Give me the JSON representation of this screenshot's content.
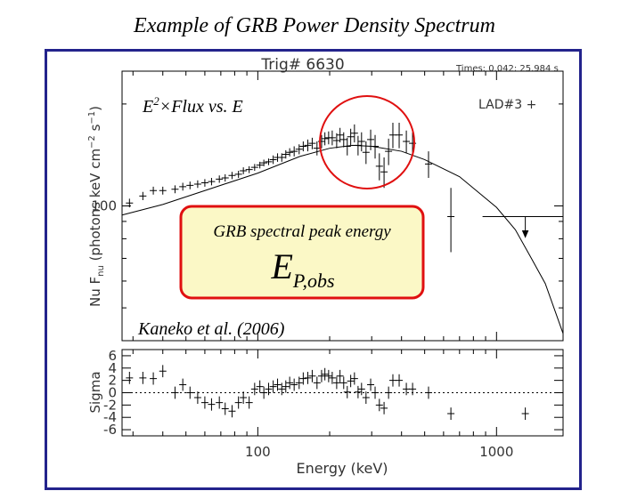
{
  "slide": {
    "title": "Example of GRB Power Density Spectrum",
    "formula": {
      "base": "E",
      "exponent": "2",
      "rest": "×Flux vs. E"
    },
    "peak_box": {
      "caption": "GRB spectral peak energy",
      "symbol": "E",
      "subscript": "P,obs"
    },
    "reference": "Kaneko et al. (2006)"
  },
  "chart_data": [
    {
      "type": "scatter",
      "title": "Trig# 6630",
      "subtitle": "Times: 0.042: 25.984 s",
      "detector": "LAD#3 +",
      "ylabel": {
        "main": "Nu F",
        "sub": "nu",
        "unit": " (photons keV cm",
        "exp1": "−2",
        "mid": " s",
        "exp2": "−1",
        "end": ")"
      },
      "log_x": true,
      "log_y": true,
      "color": "#000000",
      "xlim": [
        27,
        1900
      ],
      "ylim": [
        40,
        250
      ],
      "xticks": [
        100,
        1000
      ],
      "xminorticks": [
        30,
        40,
        50,
        60,
        70,
        80,
        90,
        200,
        300,
        400,
        500,
        600,
        700,
        800,
        900
      ],
      "yticks": [
        100
      ],
      "yminorticks": [
        50,
        60,
        70,
        80,
        90,
        200
      ],
      "x": [
        29,
        33,
        36.5,
        40,
        45,
        48.5,
        52,
        56,
        60,
        64,
        69,
        73,
        78,
        83,
        87,
        92,
        97,
        102,
        106,
        111,
        116,
        121,
        126,
        131,
        136,
        142,
        149,
        155,
        162,
        169,
        177,
        185,
        191,
        198,
        205,
        214,
        221,
        229,
        237,
        245,
        254,
        263,
        272,
        284,
        297,
        310,
        323,
        338,
        353,
        368,
        391,
        419,
        445,
        519,
        644
      ],
      "values": [
        102,
        107,
        111,
        111,
        112,
        114,
        115,
        116,
        117,
        118,
        120,
        121,
        123,
        124,
        127,
        128,
        130,
        132,
        134,
        135,
        137,
        139,
        139,
        142,
        144,
        145,
        147,
        150,
        151,
        153,
        148,
        155,
        158,
        159,
        159,
        156,
        162,
        157,
        150,
        160,
        164,
        151,
        155,
        144,
        157,
        150,
        131,
        126,
        145,
        162,
        162,
        155,
        153,
        133,
        93
      ],
      "errors": [
        3,
        3,
        3,
        3,
        3,
        3,
        3,
        3,
        3,
        3,
        3,
        3,
        3,
        3,
        3,
        3,
        3,
        3,
        3,
        3,
        4,
        4,
        4,
        4,
        4,
        5,
        5,
        5,
        6,
        6,
        7,
        7,
        7,
        7,
        8,
        8,
        8,
        8,
        9,
        9,
        10,
        10,
        10,
        11,
        11,
        12,
        12,
        13,
        13,
        14,
        14,
        12,
        12,
        12,
        20
      ],
      "upper_limit": {
        "x": 1320,
        "value": 93
      },
      "model": {
        "x": [
          27,
          40,
          60,
          100,
          150,
          200,
          250,
          300,
          400,
          500,
          700,
          1000,
          1200,
          1400,
          1600,
          1900
        ],
        "values": [
          94,
          101,
          111,
          125,
          140,
          148,
          151,
          150,
          145,
          137,
          122,
          99,
          85,
          70,
          59,
          42
        ]
      }
    },
    {
      "type": "scatter",
      "ylabel": "Sigma",
      "xlabel": "Energy (keV)",
      "log_x": true,
      "color": "#000000",
      "xlim": [
        27,
        1900
      ],
      "ylim": [
        -7,
        7
      ],
      "xticks": [
        100,
        1000
      ],
      "xminorticks": [
        30,
        40,
        50,
        60,
        70,
        80,
        90,
        200,
        300,
        400,
        500,
        600,
        700,
        800,
        900
      ],
      "yticks": [
        -6,
        -4,
        -2,
        0,
        2,
        4,
        6
      ],
      "hline": 0,
      "x": [
        29,
        33,
        36.5,
        40,
        45,
        48.5,
        52,
        56,
        60,
        64,
        69,
        73,
        78,
        83,
        87,
        92,
        97,
        102,
        106,
        111,
        116,
        121,
        126,
        131,
        136,
        142,
        149,
        155,
        162,
        169,
        177,
        185,
        191,
        198,
        205,
        214,
        221,
        229,
        237,
        245,
        254,
        263,
        272,
        284,
        297,
        310,
        323,
        338,
        353,
        368,
        391,
        419,
        445,
        519,
        644,
        1320
      ],
      "values": [
        2.4,
        2.4,
        2.3,
        3.5,
        0,
        1.3,
        0,
        -0.8,
        -1.6,
        -1.9,
        -1.6,
        -2.6,
        -3,
        -1.6,
        -0.8,
        -1.6,
        0.6,
        1,
        0,
        0.6,
        1,
        1.3,
        0.6,
        1,
        1.6,
        1.3,
        1.6,
        2.3,
        2.4,
        2.7,
        1.6,
        2.7,
        3,
        2.7,
        2.4,
        1.6,
        2.7,
        1.6,
        0.1,
        1.9,
        2.3,
        0.1,
        0.6,
        -0.8,
        1.3,
        0,
        -2,
        -2.5,
        0,
        2,
        2,
        0.6,
        0.6,
        0,
        -3.4,
        -3.4
      ],
      "errors": [
        1,
        1,
        1,
        1,
        1,
        1,
        1,
        1,
        1,
        1,
        1,
        1,
        1,
        1,
        1,
        1,
        1,
        1,
        1,
        1,
        1,
        1,
        1,
        1,
        1,
        1,
        1,
        1,
        1,
        1,
        1,
        1,
        1,
        1,
        1,
        1,
        1,
        1,
        1,
        1,
        1,
        1,
        1,
        1,
        1,
        1,
        1,
        1,
        1,
        1,
        1,
        1,
        1,
        1,
        1,
        1
      ]
    }
  ]
}
